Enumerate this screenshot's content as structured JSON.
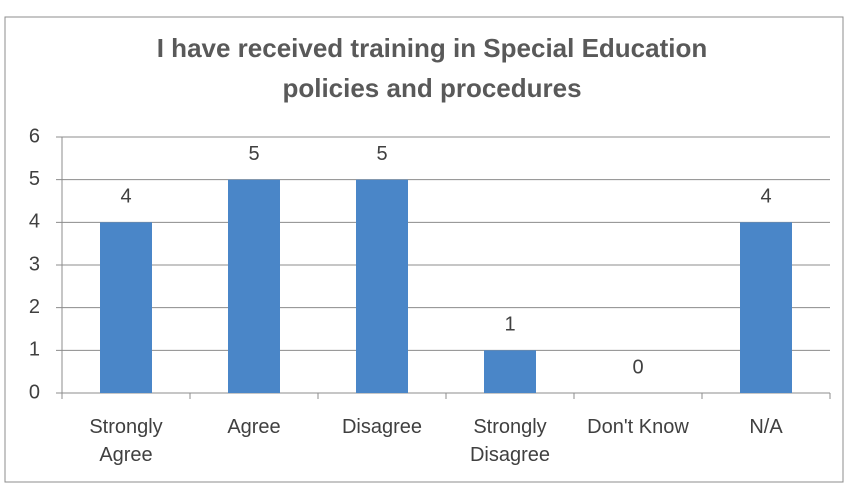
{
  "chart_data": {
    "type": "bar",
    "title": "I have received training in Special Education policies and procedures",
    "categories": [
      "Strongly Agree",
      "Agree",
      "Disagree",
      "Strongly Disagree",
      "Don't Know",
      "N/A"
    ],
    "values": [
      4,
      5,
      5,
      1,
      0,
      4
    ],
    "color": "#4a86c8",
    "ylim": [
      0,
      6
    ],
    "yticks": [
      0,
      1,
      2,
      3,
      4,
      5,
      6
    ],
    "grid": true
  }
}
